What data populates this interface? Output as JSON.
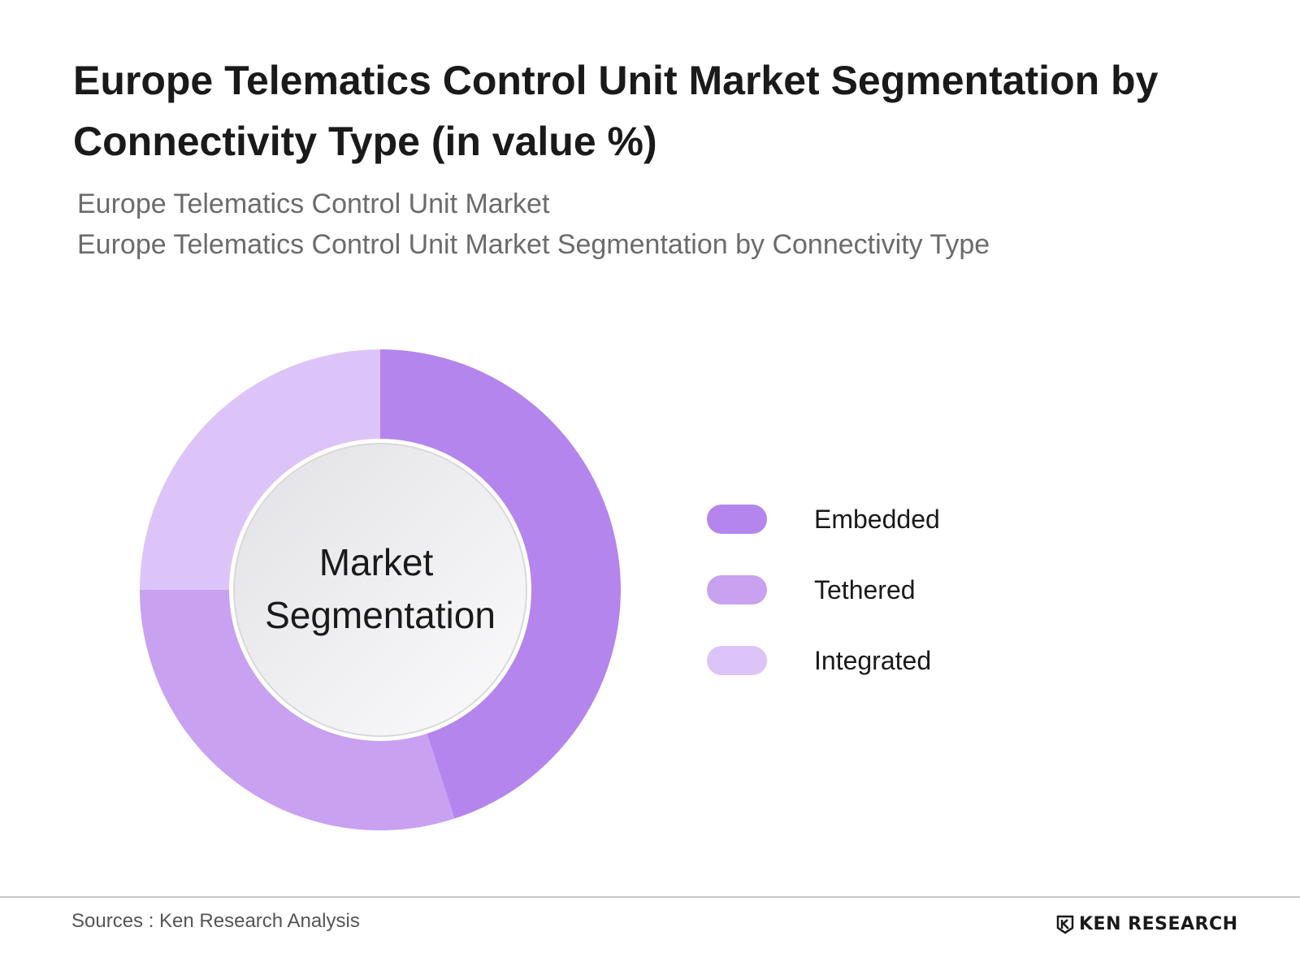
{
  "header": {
    "title": "Europe Telematics Control Unit Market Segmentation by Connectivity Type (in value %)",
    "subtitle_1": "Europe Telematics Control Unit Market",
    "subtitle_2": "Europe Telematics Control Unit Market Segmentation by Connectivity Type"
  },
  "chart_data": {
    "type": "pie",
    "style": "donut",
    "center_label_lines": [
      "Market",
      "Segmentation"
    ],
    "categories": [
      "Embedded",
      "Tethered",
      "Integrated"
    ],
    "values": [
      45,
      30,
      25
    ],
    "colors": [
      "#b485ec",
      "#c8a1f0",
      "#ddc4f8"
    ],
    "legend_position": "right"
  },
  "legend": [
    {
      "label": "Embedded",
      "color": "#b485ec"
    },
    {
      "label": "Tethered",
      "color": "#c8a1f0"
    },
    {
      "label": "Integrated",
      "color": "#ddc4f8"
    }
  ],
  "footer": {
    "sources": "Sources : Ken Research Analysis",
    "logo_text": "KEN RESEARCH"
  }
}
